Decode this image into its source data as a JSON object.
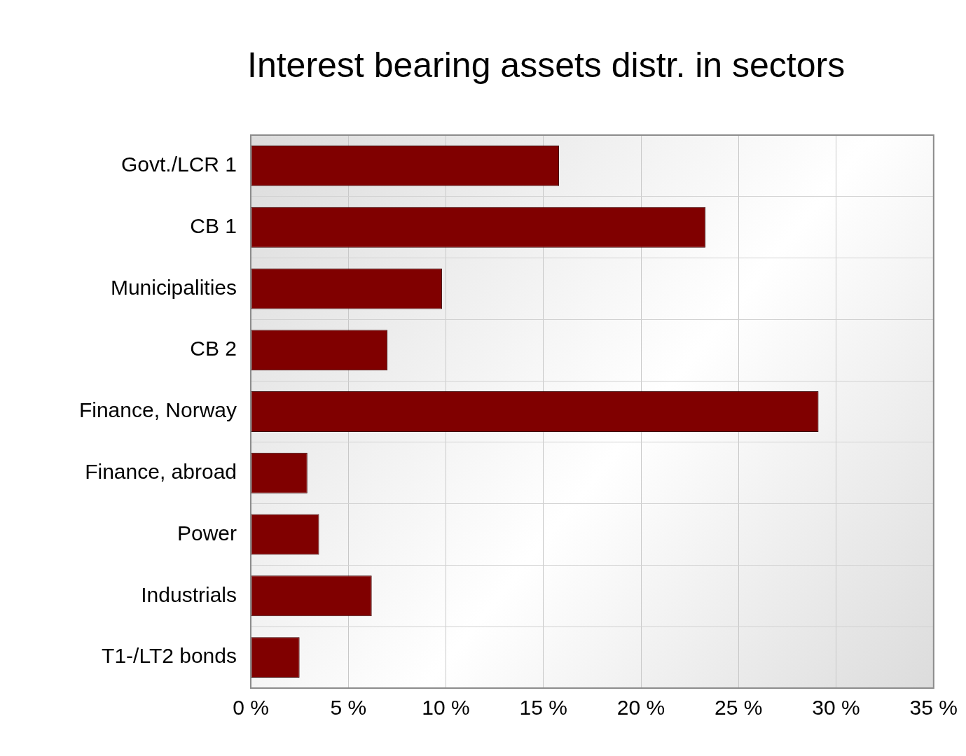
{
  "chart_data": {
    "type": "bar",
    "orientation": "horizontal",
    "title": "Interest bearing assets distr. in sectors",
    "categories": [
      "Govt./LCR 1",
      "CB 1",
      "Municipalities",
      "CB 2",
      "Finance, Norway",
      "Finance, abroad",
      "Power",
      "Industrials",
      "T1-/LT2 bonds"
    ],
    "values": [
      15.8,
      23.3,
      9.8,
      7.0,
      29.1,
      2.9,
      3.5,
      6.2,
      2.5
    ],
    "color": "#800000",
    "xlim": [
      0,
      35
    ],
    "xticks": [
      {
        "value": 0,
        "label": "0 %"
      },
      {
        "value": 5,
        "label": "5 %"
      },
      {
        "value": 10,
        "label": "10 %"
      },
      {
        "value": 15,
        "label": "15 %"
      },
      {
        "value": 20,
        "label": "20 %"
      },
      {
        "value": 25,
        "label": "25 %"
      },
      {
        "value": 30,
        "label": "30 %"
      },
      {
        "value": 35,
        "label": "35 %"
      }
    ],
    "grid": true,
    "legend": false
  }
}
